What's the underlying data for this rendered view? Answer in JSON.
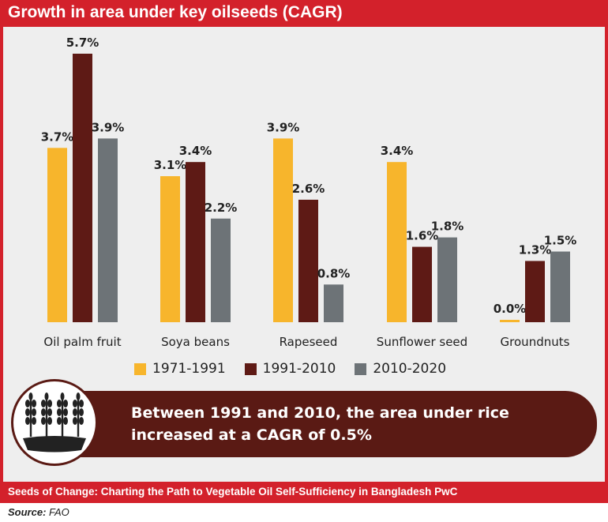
{
  "title": "Growth in area under key oilseeds (CAGR)",
  "colors": {
    "brand_red": "#d3212b",
    "dark_brown": "#5a1a14",
    "background": "#eeeeee"
  },
  "chart_data": {
    "type": "bar",
    "categories": [
      "Oil palm fruit",
      "Soya beans",
      "Rapeseed",
      "Sunflower seed",
      "Groundnuts"
    ],
    "series": [
      {
        "name": "1971-1991",
        "color": "#f7b52c",
        "values": [
          3.7,
          3.1,
          3.9,
          3.4,
          0.0
        ],
        "labels": [
          "3.7%",
          "3.1%",
          "3.9%",
          "3.4%",
          "0.0%"
        ]
      },
      {
        "name": "1991-2010",
        "color": "#5e1a15",
        "values": [
          5.7,
          3.4,
          2.6,
          1.6,
          1.3
        ],
        "labels": [
          "5.7%",
          "3.4%",
          "2.6%",
          "1.6%",
          "1.3%"
        ]
      },
      {
        "name": "2010-2020",
        "color": "#6d7377",
        "values": [
          3.9,
          2.2,
          0.8,
          1.8,
          1.5
        ],
        "labels": [
          "3.9%",
          "2.2%",
          "0.8%",
          "1.8%",
          "1.5%"
        ]
      }
    ],
    "ylim": [
      0,
      6
    ],
    "legend_position": "bottom",
    "grid": false
  },
  "note": {
    "text": "Between 1991 and 2010, the area under rice increased at a CAGR of 0.5%",
    "icon": "wheat-icon"
  },
  "footer": "Seeds of Change: Charting the Path to Vegetable Oil Self-Sufficiency in Bangladesh PwC",
  "source": {
    "label": "Source:",
    "value": "FAO"
  }
}
